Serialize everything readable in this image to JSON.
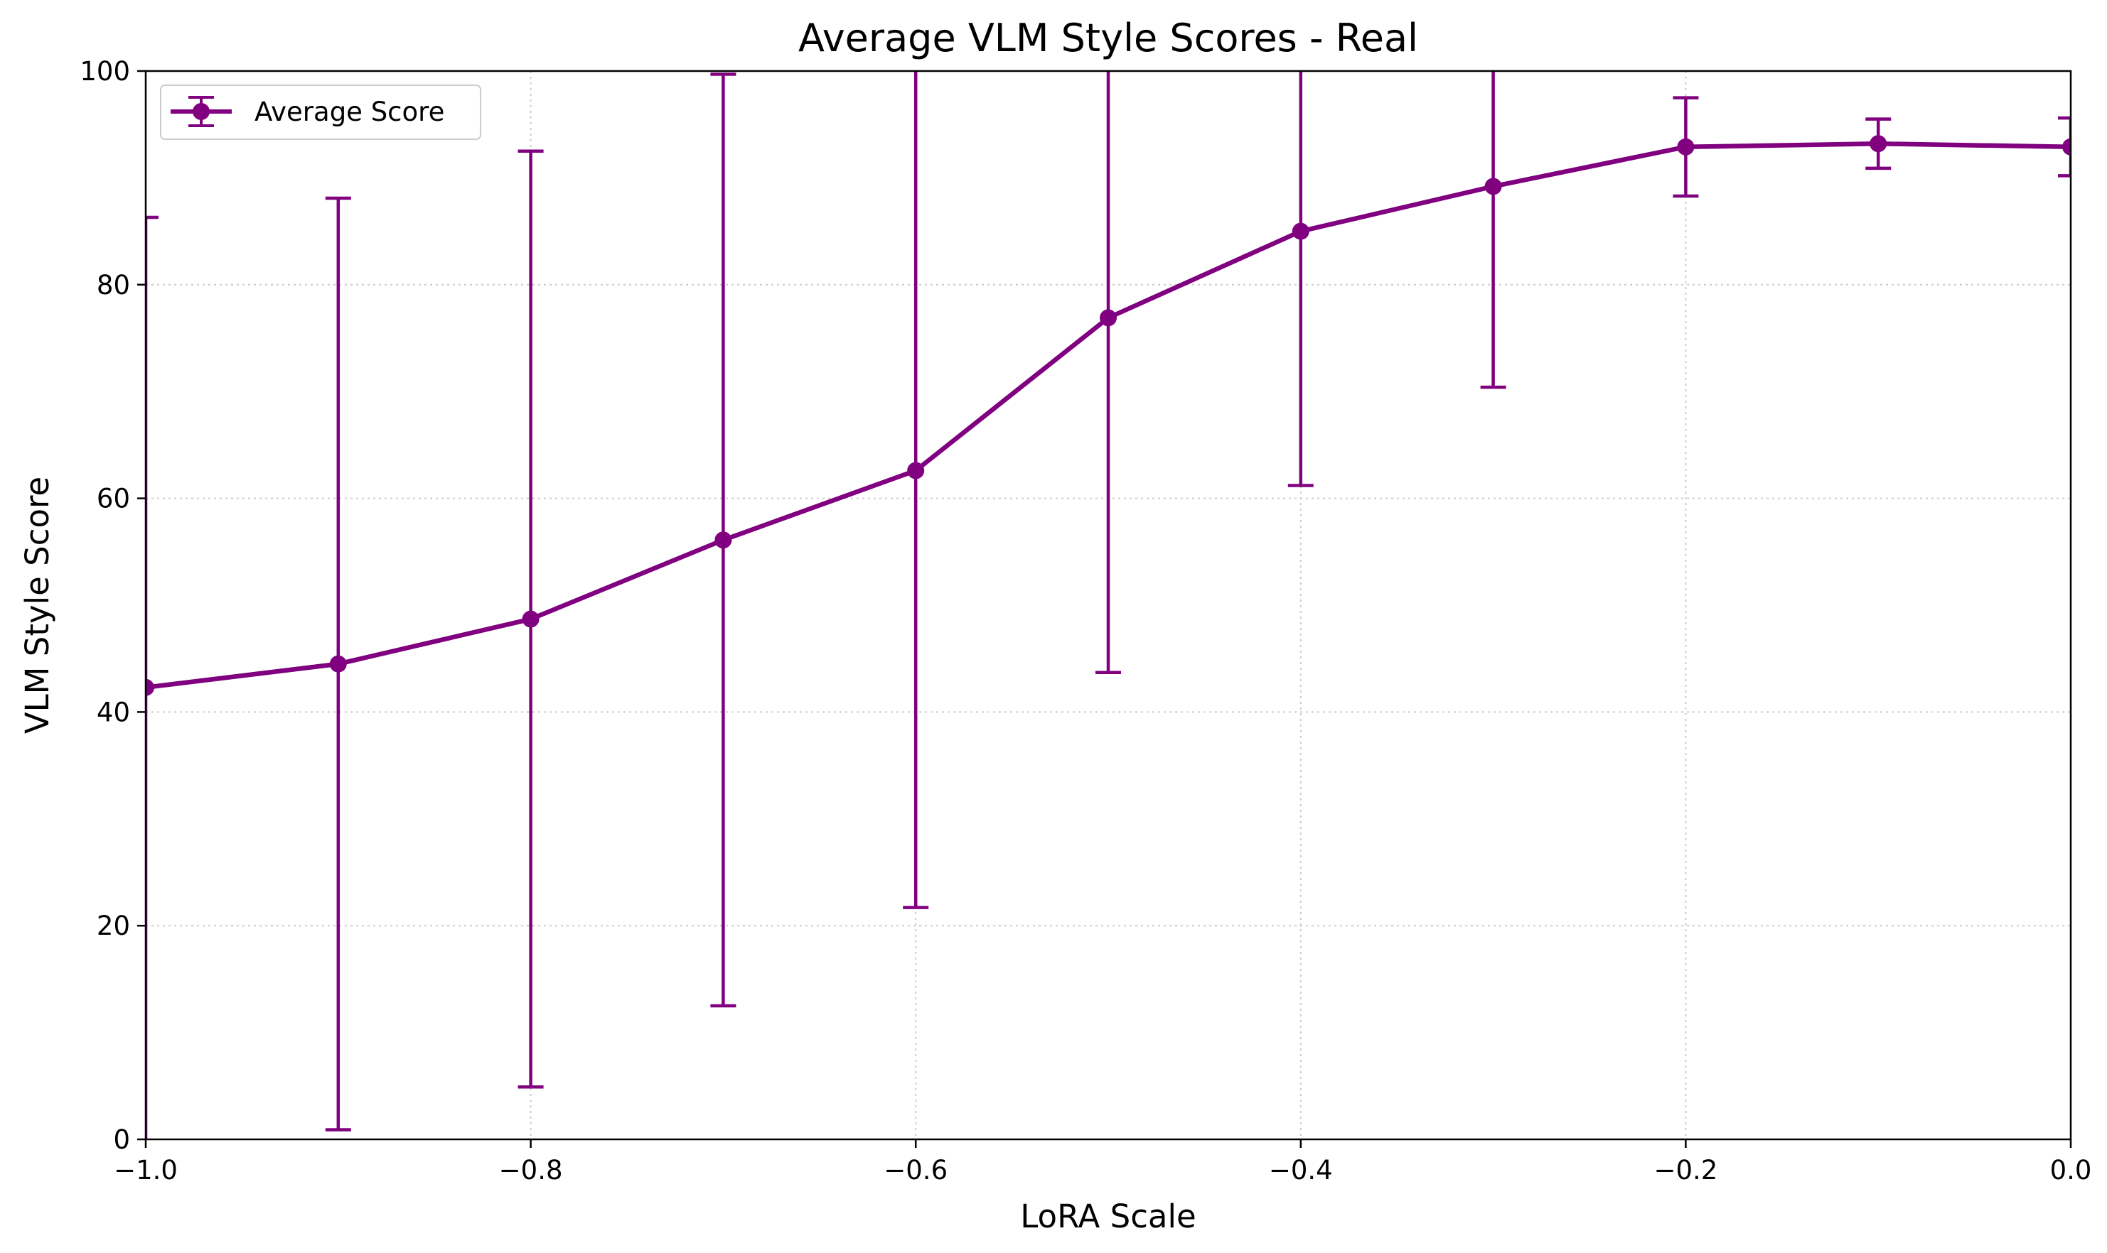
{
  "chart_data": {
    "type": "line",
    "title": "Average VLM Style Scores - Real",
    "xlabel": "LoRA Scale",
    "ylabel": "VLM Style Score",
    "xlim": [
      -1.0,
      0.0
    ],
    "ylim": [
      0,
      100
    ],
    "x_ticks": [
      -1.0,
      -0.8,
      -0.6,
      -0.4,
      -0.2,
      0.0
    ],
    "x_tick_labels": [
      "−1.0",
      "−0.8",
      "−0.6",
      "−0.4",
      "−0.2",
      "0.0"
    ],
    "y_ticks": [
      0,
      20,
      40,
      60,
      80,
      100
    ],
    "y_tick_labels": [
      "0",
      "20",
      "40",
      "60",
      "80",
      "100"
    ],
    "grid": true,
    "legend_position": "top-left",
    "color": "#800080",
    "series": [
      {
        "name": "Average Score",
        "x": [
          -1.0,
          -0.9,
          -0.8,
          -0.7,
          -0.6,
          -0.5,
          -0.4,
          -0.3,
          -0.2,
          -0.1,
          0.0
        ],
        "y": [
          42.3,
          44.5,
          48.7,
          56.1,
          62.6,
          76.9,
          85.0,
          89.2,
          92.9,
          93.2,
          92.9
        ],
        "yerr": [
          44.0,
          43.6,
          43.8,
          43.6,
          40.9,
          33.2,
          23.8,
          18.8,
          4.6,
          2.3,
          2.7
        ]
      }
    ]
  }
}
